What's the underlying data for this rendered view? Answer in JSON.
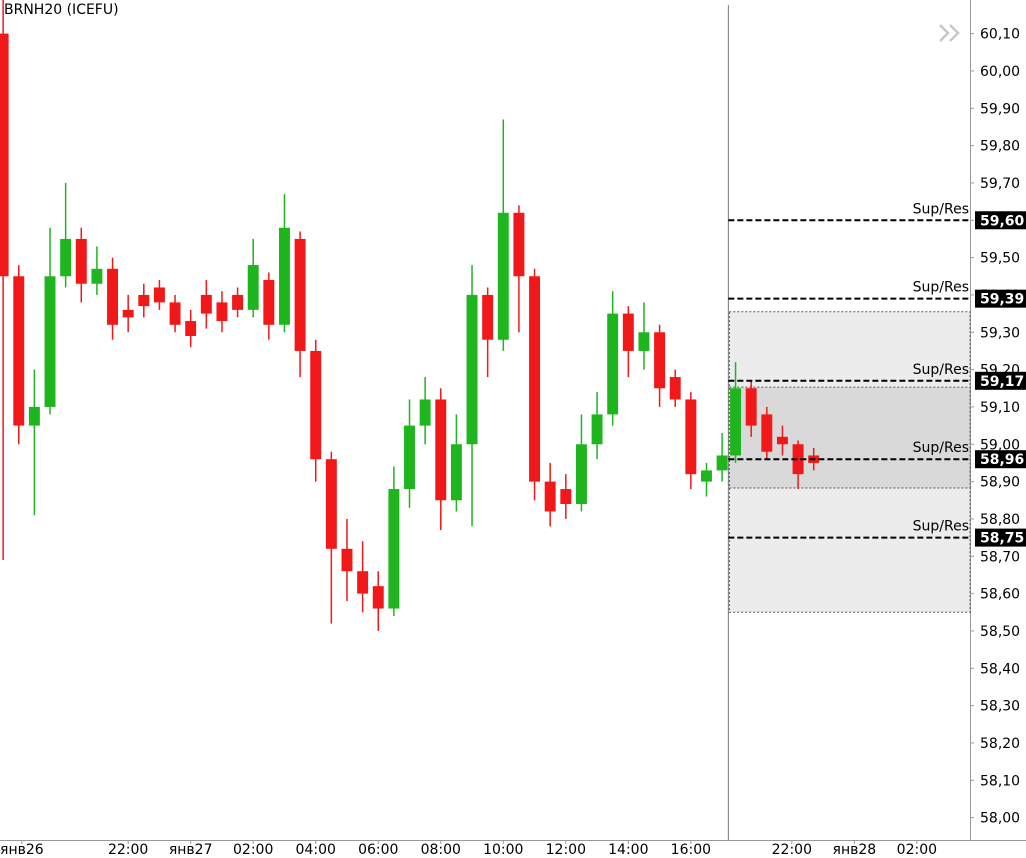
{
  "chart_data": {
    "type": "candlestick",
    "title": "BRNH20 (ICEFU)",
    "up_color": "#1fb51f",
    "down_color": "#f01818",
    "x": [
      18.0,
      18.5,
      19.0,
      19.5,
      20.0,
      20.5,
      21.0,
      21.5,
      22.0,
      22.5,
      23.0,
      23.5,
      24.0,
      24.5,
      25.0,
      25.5,
      26.0,
      26.5,
      27.0,
      27.5,
      28.0,
      28.5,
      29.0,
      29.5,
      30.0,
      30.5,
      31.0,
      31.5,
      32.0,
      32.5,
      33.0,
      33.5,
      34.0,
      34.5,
      35.0,
      35.5,
      36.0,
      36.5,
      37.0,
      37.5,
      38.0,
      38.5,
      39.0,
      39.5,
      40.0,
      40.5,
      41.0,
      44.2,
      44.7,
      45.2,
      45.7,
      46.2,
      46.7
    ],
    "open": [
      60.1,
      59.45,
      59.05,
      59.1,
      59.45,
      59.55,
      59.43,
      59.47,
      59.36,
      59.4,
      59.42,
      59.38,
      59.33,
      59.4,
      59.38,
      59.4,
      59.36,
      59.44,
      59.32,
      59.55,
      59.25,
      58.96,
      58.72,
      58.66,
      58.62,
      58.56,
      58.88,
      59.05,
      59.12,
      58.85,
      59.0,
      59.4,
      59.28,
      59.62,
      59.45,
      58.9,
      58.88,
      58.84,
      59.0,
      59.08,
      59.35,
      59.25,
      59.3,
      59.18,
      59.12,
      58.9,
      58.93,
      58.97,
      59.15,
      59.08,
      59.02,
      59.0,
      58.97
    ],
    "high": [
      60.19,
      59.48,
      59.2,
      59.58,
      59.7,
      59.58,
      59.53,
      59.5,
      59.4,
      59.43,
      59.44,
      59.4,
      59.36,
      59.44,
      59.41,
      59.42,
      59.55,
      59.46,
      59.67,
      59.57,
      59.28,
      58.98,
      58.8,
      58.74,
      58.66,
      58.94,
      59.12,
      59.18,
      59.15,
      59.08,
      59.48,
      59.42,
      59.87,
      59.64,
      59.47,
      58.95,
      58.92,
      59.08,
      59.14,
      59.41,
      59.37,
      59.38,
      59.32,
      59.2,
      59.14,
      58.95,
      59.03,
      59.22,
      59.17,
      59.1,
      59.05,
      59.01,
      58.99
    ],
    "low": [
      58.69,
      59.0,
      58.81,
      59.08,
      59.42,
      59.38,
      59.4,
      59.28,
      59.3,
      59.34,
      59.36,
      59.3,
      59.26,
      59.31,
      59.3,
      59.34,
      59.34,
      59.28,
      59.3,
      59.18,
      58.9,
      58.52,
      58.58,
      58.55,
      58.5,
      58.54,
      58.83,
      59.0,
      58.77,
      58.82,
      58.78,
      59.18,
      59.25,
      59.3,
      58.85,
      58.78,
      58.8,
      58.82,
      58.96,
      59.05,
      59.18,
      59.2,
      59.1,
      59.1,
      58.88,
      58.86,
      58.9,
      58.95,
      59.02,
      58.96,
      58.97,
      58.88,
      58.93
    ],
    "close": [
      59.45,
      59.05,
      59.1,
      59.45,
      59.55,
      59.43,
      59.47,
      59.32,
      59.34,
      59.37,
      59.38,
      59.32,
      59.29,
      59.35,
      59.33,
      59.36,
      59.48,
      59.32,
      59.58,
      59.25,
      58.96,
      58.72,
      58.66,
      58.6,
      58.56,
      58.88,
      59.05,
      59.12,
      58.85,
      59.0,
      59.4,
      59.28,
      59.62,
      59.45,
      58.9,
      58.82,
      58.84,
      59.0,
      59.08,
      59.35,
      59.25,
      59.3,
      59.15,
      59.12,
      58.92,
      58.93,
      58.97,
      59.15,
      59.05,
      58.98,
      59.0,
      58.92,
      58.95
    ],
    "xlim": [
      17.9,
      51.7
    ],
    "x_break": [
      41.2,
      43.97
    ],
    "xticks": [
      {
        "value": 18.6,
        "label": "янв26"
      },
      {
        "value": 22,
        "label": "22:00"
      },
      {
        "value": 24,
        "label": "янв27"
      },
      {
        "value": 26,
        "label": "02:00"
      },
      {
        "value": 28,
        "label": "04:00"
      },
      {
        "value": 30,
        "label": "06:00"
      },
      {
        "value": 32,
        "label": "08:00"
      },
      {
        "value": 34,
        "label": "10:00"
      },
      {
        "value": 36,
        "label": "12:00"
      },
      {
        "value": 38,
        "label": "14:00"
      },
      {
        "value": 40,
        "label": "16:00"
      },
      {
        "value": 46,
        "label": "22:00"
      },
      {
        "value": 48,
        "label": "янв28"
      },
      {
        "value": 50,
        "label": "02:00"
      }
    ],
    "ylim": [
      57.94,
      60.19
    ],
    "yticks": [
      {
        "value": 58.0,
        "label": "58,00"
      },
      {
        "value": 58.1,
        "label": "58,10"
      },
      {
        "value": 58.2,
        "label": "58,20"
      },
      {
        "value": 58.3,
        "label": "58,30"
      },
      {
        "value": 58.4,
        "label": "58,40"
      },
      {
        "value": 58.5,
        "label": "58,50"
      },
      {
        "value": 58.6,
        "label": "58,60"
      },
      {
        "value": 58.7,
        "label": "58,70"
      },
      {
        "value": 58.8,
        "label": "58,80"
      },
      {
        "value": 58.9,
        "label": "58,90"
      },
      {
        "value": 59.0,
        "label": "59,00"
      },
      {
        "value": 59.1,
        "label": "59,10"
      },
      {
        "value": 59.2,
        "label": "59,20"
      },
      {
        "value": 59.3,
        "label": "59,30"
      },
      {
        "value": 59.4,
        "label": "59,40"
      },
      {
        "value": 59.5,
        "label": "59,50"
      },
      {
        "value": 59.6,
        "label": "59,60"
      },
      {
        "value": 59.7,
        "label": "59,70"
      },
      {
        "value": 59.8,
        "label": "59,80"
      },
      {
        "value": 59.9,
        "label": "59,90"
      },
      {
        "value": 60.0,
        "label": "60,00"
      },
      {
        "value": 60.1,
        "label": "60,10"
      }
    ],
    "zones": [
      {
        "from": 58.55,
        "to": 59.355,
        "color": "#ececec"
      },
      {
        "from": 58.883,
        "to": 59.153,
        "color": "#d9d9d9"
      }
    ],
    "levels": [
      {
        "label": "Sup/Res",
        "value": 59.6,
        "value_label": "59,60"
      },
      {
        "label": "Sup/Res",
        "value": 59.39,
        "value_label": "59,39"
      },
      {
        "label": "Sup/Res",
        "value": 59.17,
        "value_label": "59,17"
      },
      {
        "label": "Sup/Res",
        "value": 58.96,
        "value_label": "58,96"
      },
      {
        "label": "Sup/Res",
        "value": 58.75,
        "value_label": "58,75"
      }
    ]
  }
}
